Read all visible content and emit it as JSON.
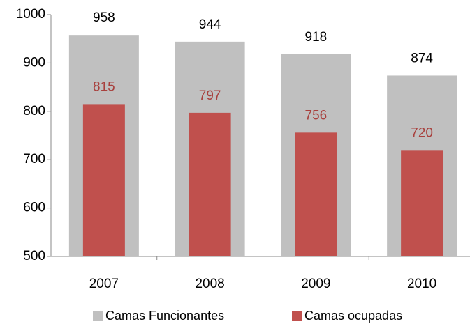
{
  "chart_data": {
    "type": "bar",
    "categories": [
      "2007",
      "2008",
      "2009",
      "2010"
    ],
    "series": [
      {
        "name": "Camas Funcionantes",
        "color": "#c0c0c0",
        "values": [
          958,
          944,
          918,
          874
        ]
      },
      {
        "name": "Camas ocupadas",
        "color": "#c0504d",
        "values": [
          815,
          797,
          756,
          720
        ]
      }
    ],
    "ylim": [
      500,
      1000
    ],
    "yticks": [
      500,
      600,
      700,
      800,
      900,
      1000
    ],
    "overlap": true,
    "legend": "bottom"
  }
}
